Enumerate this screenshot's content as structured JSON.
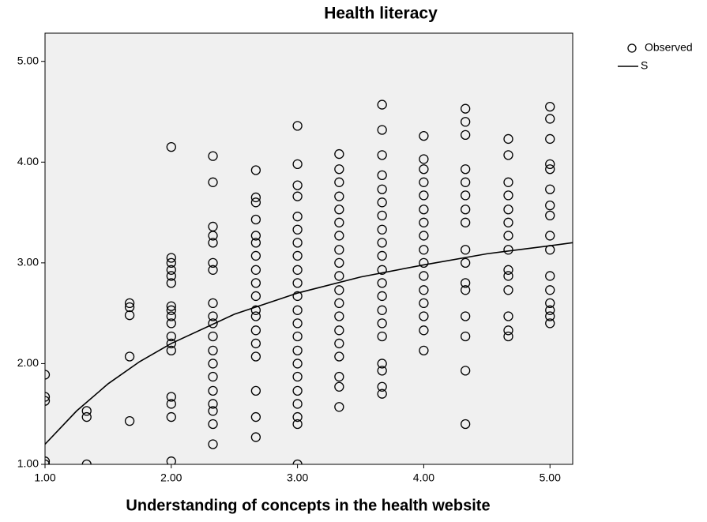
{
  "chart_data": {
    "type": "scatter",
    "title": "Health literacy",
    "x_label": "Understanding of concepts in the  health website",
    "xlim": [
      1.0,
      5.18
    ],
    "ylim": [
      1.0,
      5.28
    ],
    "xticks": [
      {
        "value": 1,
        "label": "1.00"
      },
      {
        "value": 2,
        "label": "2.00"
      },
      {
        "value": 3,
        "label": "3.00"
      },
      {
        "value": 4,
        "label": "4.00"
      },
      {
        "value": 5,
        "label": "5.00"
      }
    ],
    "yticks": [
      {
        "value": 1,
        "label": "1.00"
      },
      {
        "value": 2,
        "label": "2.00"
      },
      {
        "value": 3,
        "label": "3.00"
      },
      {
        "value": 4,
        "label": "4.00"
      },
      {
        "value": 5,
        "label": "5.00"
      }
    ],
    "background": "#f0f0f0",
    "series": [
      {
        "name": "Observed",
        "color": "#000000",
        "mark": "circle",
        "x": [
          1,
          1,
          1,
          1,
          1,
          1.33,
          1.33,
          1.33,
          1.67,
          1.67,
          1.67,
          1.67,
          1.67,
          2,
          2,
          2,
          2,
          2,
          2,
          2,
          2,
          2,
          2,
          2,
          2,
          2,
          2,
          2,
          2,
          2,
          2.33,
          2.33,
          2.33,
          2.33,
          2.33,
          2.33,
          2.33,
          2.33,
          2.33,
          2.33,
          2.33,
          2.33,
          2.33,
          2.33,
          2.33,
          2.33,
          2.33,
          2.33,
          2.33,
          2.67,
          2.67,
          2.67,
          2.67,
          2.67,
          2.67,
          2.67,
          2.67,
          2.67,
          2.67,
          2.67,
          2.67,
          2.67,
          2.67,
          2.67,
          2.67,
          2.67,
          2.67,
          3,
          3,
          3,
          3,
          3,
          3,
          3,
          3,
          3,
          3,
          3,
          3,
          3,
          3,
          3,
          3,
          3,
          3,
          3,
          3,
          3,
          3,
          3.33,
          3.33,
          3.33,
          3.33,
          3.33,
          3.33,
          3.33,
          3.33,
          3.33,
          3.33,
          3.33,
          3.33,
          3.33,
          3.33,
          3.33,
          3.33,
          3.33,
          3.33,
          3.33,
          3.67,
          3.67,
          3.67,
          3.67,
          3.67,
          3.67,
          3.67,
          3.67,
          3.67,
          3.67,
          3.67,
          3.67,
          3.67,
          3.67,
          3.67,
          3.67,
          3.67,
          3.67,
          3.67,
          3.67,
          4,
          4,
          4,
          4,
          4,
          4,
          4,
          4,
          4,
          4,
          4,
          4,
          4,
          4,
          4,
          4,
          4.33,
          4.33,
          4.33,
          4.33,
          4.33,
          4.33,
          4.33,
          4.33,
          4.33,
          4.33,
          4.33,
          4.33,
          4.33,
          4.33,
          4.33,
          4.33,
          4.67,
          4.67,
          4.67,
          4.67,
          4.67,
          4.67,
          4.67,
          4.67,
          4.67,
          4.67,
          4.67,
          4.67,
          4.67,
          4.67,
          5,
          5,
          5,
          5,
          5,
          5,
          5,
          5,
          5,
          5,
          5,
          5,
          5,
          5,
          5,
          5
        ],
        "values": [
          1.89,
          1.67,
          1.63,
          1.03,
          1.0,
          1.53,
          1.47,
          1.0,
          2.6,
          2.56,
          2.48,
          2.07,
          1.43,
          4.15,
          3.05,
          3.0,
          2.93,
          2.87,
          2.8,
          2.57,
          2.53,
          2.47,
          2.4,
          2.27,
          2.2,
          2.13,
          1.67,
          1.6,
          1.47,
          1.03,
          4.06,
          3.8,
          3.36,
          3.27,
          3.2,
          3.0,
          2.93,
          2.6,
          2.47,
          2.4,
          2.27,
          2.13,
          2.0,
          1.87,
          1.73,
          1.6,
          1.53,
          1.4,
          1.2,
          3.92,
          3.65,
          3.6,
          3.43,
          3.27,
          3.2,
          3.07,
          2.93,
          2.8,
          2.67,
          2.53,
          2.47,
          2.33,
          2.2,
          2.07,
          1.73,
          1.47,
          1.27,
          4.36,
          3.98,
          3.77,
          3.66,
          3.46,
          3.33,
          3.2,
          3.07,
          2.93,
          2.8,
          2.67,
          2.53,
          2.4,
          2.27,
          2.13,
          2.0,
          1.87,
          1.73,
          1.6,
          1.47,
          1.4,
          1.0,
          4.08,
          3.93,
          3.8,
          3.66,
          3.53,
          3.4,
          3.27,
          3.13,
          3.0,
          2.87,
          2.73,
          2.6,
          2.47,
          2.33,
          2.2,
          2.07,
          1.87,
          1.77,
          1.57,
          4.57,
          4.32,
          4.07,
          3.87,
          3.73,
          3.6,
          3.47,
          3.33,
          3.2,
          3.07,
          2.93,
          2.8,
          2.67,
          2.53,
          2.4,
          2.27,
          2.0,
          1.93,
          1.77,
          1.7,
          4.26,
          4.03,
          3.93,
          3.8,
          3.67,
          3.53,
          3.4,
          3.27,
          3.13,
          3.0,
          2.87,
          2.73,
          2.6,
          2.47,
          2.33,
          2.13,
          4.53,
          4.4,
          4.27,
          3.93,
          3.8,
          3.67,
          3.53,
          3.4,
          3.13,
          3.0,
          2.8,
          2.73,
          2.47,
          2.27,
          1.93,
          1.4,
          4.23,
          4.07,
          3.8,
          3.67,
          3.53,
          3.4,
          3.27,
          3.13,
          2.93,
          2.87,
          2.73,
          2.47,
          2.33,
          2.27,
          4.55,
          4.43,
          4.23,
          3.98,
          3.93,
          3.73,
          3.57,
          3.47,
          3.27,
          3.13,
          2.87,
          2.73,
          2.6,
          2.53,
          2.47,
          2.4
        ]
      },
      {
        "name": "S",
        "color": "#000000",
        "mark": "line",
        "x": [
          1,
          1.25,
          1.5,
          1.75,
          2,
          2.5,
          3,
          3.5,
          4,
          4.5,
          5,
          5.18
        ],
        "values": [
          1.2,
          1.53,
          1.8,
          2.02,
          2.2,
          2.49,
          2.7,
          2.86,
          2.98,
          3.09,
          3.17,
          3.2
        ]
      }
    ]
  }
}
